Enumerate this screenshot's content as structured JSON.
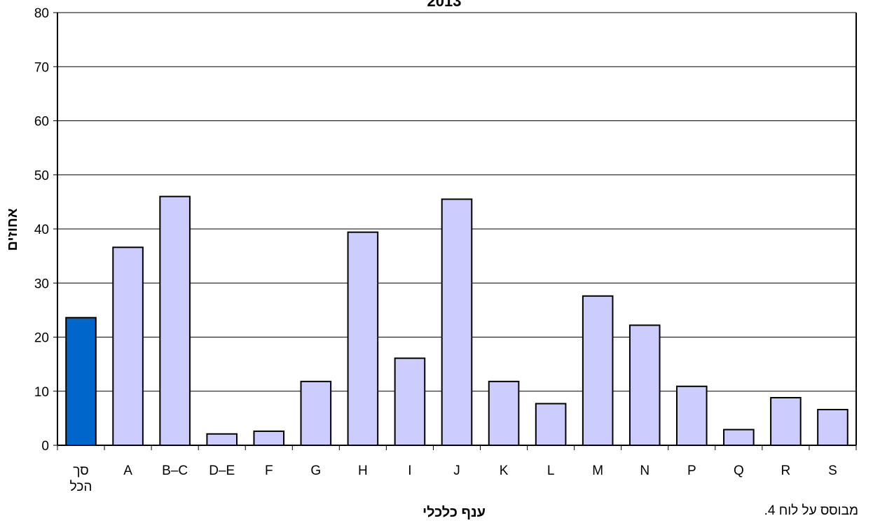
{
  "chart_data": {
    "type": "bar",
    "title": "2013",
    "xlabel": "ענף כלכלי",
    "ylabel": "אחוזים",
    "categories": [
      [
        "סך",
        "הכל"
      ],
      "A",
      "B–C",
      "D–E",
      "F",
      "G",
      "H",
      "I",
      "J",
      "K",
      "L",
      "M",
      "N",
      "P",
      "Q",
      "R",
      "S"
    ],
    "values": [
      23.6,
      36.6,
      46.0,
      2.1,
      2.6,
      11.8,
      39.4,
      16.1,
      45.5,
      11.8,
      7.7,
      27.6,
      22.2,
      10.9,
      2.9,
      8.8,
      6.6
    ],
    "ylim": [
      0,
      80
    ],
    "yticks": [
      0,
      10,
      20,
      30,
      40,
      50,
      60,
      70,
      80
    ],
    "grid": true,
    "legend": "none",
    "highlight_index": 0,
    "colors": {
      "highlight": "#0066cc",
      "bar": "#ccccff",
      "stroke": "#000000",
      "grid": "#000000"
    }
  },
  "source_note": "מבוסס על לוח 4."
}
